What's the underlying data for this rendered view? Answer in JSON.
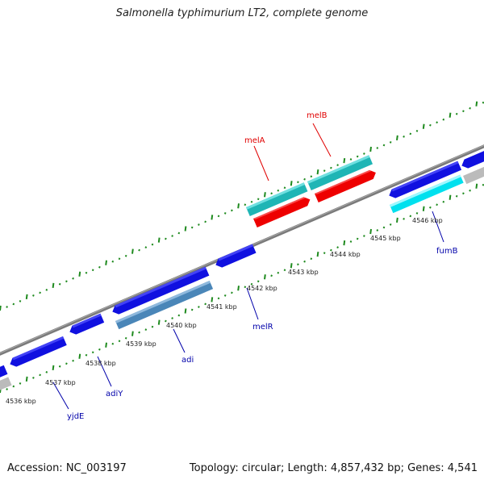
{
  "header": {
    "title": "Salmonella typhimurium LT2, complete genome"
  },
  "footer": {
    "accession": "Accession: NC_003197",
    "topology": "Topology: circular; Length: 4,857,432 bp; Genes: 4,541"
  },
  "colors": {
    "backbone": "#808080",
    "gc_ticks": "#228b22",
    "label_red": "#e00000",
    "label_blue": "#0000aa",
    "forward_red": "#ff0000",
    "forward_teal": "#22bfbf",
    "gene_blue": "#1010e0",
    "gene_steel": "#4a86b8",
    "gene_cyan": "#00e6f0",
    "gene_gray": "#bbbbbb"
  },
  "scale": {
    "unit": "kbp",
    "ticks": [
      {
        "kbp": 4536,
        "label": "4536 kbp"
      },
      {
        "kbp": 4537,
        "label": "4537 kbp"
      },
      {
        "kbp": 4538,
        "label": "4538 kbp"
      },
      {
        "kbp": 4539,
        "label": "4539 kbp"
      },
      {
        "kbp": 4540,
        "label": "4540 kbp"
      },
      {
        "kbp": 4541,
        "label": "4541 kbp"
      },
      {
        "kbp": 4542,
        "label": "4542 kbp"
      },
      {
        "kbp": 4543,
        "label": "4543 kbp"
      },
      {
        "kbp": 4544,
        "label": "4544 kbp"
      },
      {
        "kbp": 4545,
        "label": "4545 kbp"
      },
      {
        "kbp": 4546,
        "label": "4546 kbp"
      }
    ]
  },
  "genes": [
    {
      "name": "melB",
      "color_key": "label_red"
    },
    {
      "name": "melA",
      "color_key": "label_red"
    },
    {
      "name": "fumB",
      "color_key": "label_blue"
    },
    {
      "name": "melR",
      "color_key": "label_blue"
    },
    {
      "name": "adi",
      "color_key": "label_blue"
    },
    {
      "name": "adiY",
      "color_key": "label_blue"
    },
    {
      "name": "yjdE",
      "color_key": "label_blue"
    }
  ]
}
